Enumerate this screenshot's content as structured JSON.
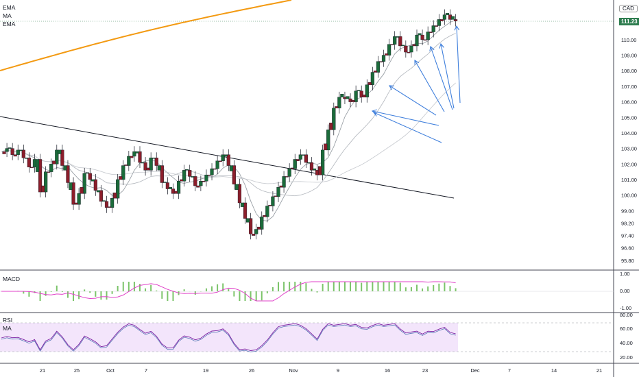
{
  "indicators": {
    "ema1": "EMA",
    "ma": "MA",
    "ema2": "EMA"
  },
  "currency": "CAD",
  "last_price": "111.23",
  "colors": {
    "up": "#1b6b3a",
    "down": "#8b1e2b",
    "ema_long": "#f39a12",
    "arrow": "#3f7fdc",
    "macd_line": "#e040c8",
    "macd_hist": "#7cc46a",
    "rsi_line": "#7b1fa2",
    "rsi_band": "#f3e5fb",
    "badge": "#2e7d4f"
  },
  "panes": {
    "macd_label": "MACD",
    "rsi_label": "RSI",
    "rsi_ma_label": "MA"
  },
  "chart_data": {
    "type": "candlestick",
    "y_ticks": [
      "111.23",
      "110.00",
      "109.00",
      "108.00",
      "107.00",
      "106.00",
      "105.00",
      "104.00",
      "103.00",
      "102.00",
      "101.00",
      "100.00",
      "99.00",
      "98.20",
      "97.40",
      "96.60",
      "95.80"
    ],
    "ylim": [
      95.8,
      111.6
    ],
    "x_ticks": [
      "21",
      "25",
      "Oct",
      "7",
      "19",
      "26",
      "Nov",
      "9",
      "16",
      "23",
      "Dec",
      "7",
      "14",
      "21"
    ],
    "macd_ticks": [
      "1.00",
      "0.00",
      "-1.00"
    ],
    "rsi_ticks": [
      "80.00",
      "60.00",
      "40.00",
      "20.00"
    ],
    "series": [
      {
        "name": "Price"
      }
    ],
    "price_path": [
      [
        0,
        102.8
      ],
      [
        4,
        103.0
      ],
      [
        8,
        102.6
      ],
      [
        12,
        102.9
      ],
      [
        16,
        102.4
      ],
      [
        20,
        101.8
      ],
      [
        24,
        102.3
      ],
      [
        28,
        100.2
      ],
      [
        32,
        101.5
      ],
      [
        36,
        102.0
      ],
      [
        40,
        102.9
      ],
      [
        44,
        101.9
      ],
      [
        48,
        100.8
      ],
      [
        52,
        99.4
      ],
      [
        56,
        100.1
      ],
      [
        60,
        101.4
      ],
      [
        64,
        101.0
      ],
      [
        68,
        100.3
      ],
      [
        72,
        99.6
      ],
      [
        76,
        99.2
      ],
      [
        80,
        99.8
      ],
      [
        84,
        101.0
      ],
      [
        88,
        101.9
      ],
      [
        92,
        102.5
      ],
      [
        96,
        102.8
      ],
      [
        100,
        102.1
      ],
      [
        104,
        101.6
      ],
      [
        108,
        102.4
      ],
      [
        112,
        101.9
      ],
      [
        116,
        100.8
      ],
      [
        120,
        100.4
      ],
      [
        124,
        100.1
      ],
      [
        128,
        100.9
      ],
      [
        132,
        101.6
      ],
      [
        136,
        101.2
      ],
      [
        140,
        100.6
      ],
      [
        144,
        100.9
      ],
      [
        148,
        101.3
      ],
      [
        152,
        101.7
      ],
      [
        156,
        102.2
      ],
      [
        160,
        102.6
      ],
      [
        164,
        101.9
      ],
      [
        168,
        100.7
      ],
      [
        172,
        99.5
      ],
      [
        176,
        98.5
      ],
      [
        180,
        97.5
      ],
      [
        184,
        97.8
      ],
      [
        188,
        98.6
      ],
      [
        192,
        99.3
      ],
      [
        196,
        99.9
      ],
      [
        200,
        100.5
      ],
      [
        204,
        101.2
      ],
      [
        208,
        101.7
      ],
      [
        212,
        102.3
      ],
      [
        216,
        102.6
      ],
      [
        220,
        102.1
      ],
      [
        224,
        101.6
      ],
      [
        228,
        101.3
      ],
      [
        232,
        102.9
      ],
      [
        236,
        104.2
      ],
      [
        240,
        105.6
      ],
      [
        244,
        106.3
      ],
      [
        248,
        106.2
      ],
      [
        252,
        106.0
      ],
      [
        256,
        106.7
      ],
      [
        260,
        106.3
      ],
      [
        264,
        107.1
      ],
      [
        268,
        107.9
      ],
      [
        272,
        108.6
      ],
      [
        276,
        109.0
      ],
      [
        280,
        109.7
      ],
      [
        284,
        110.2
      ],
      [
        288,
        109.6
      ],
      [
        292,
        109.2
      ],
      [
        296,
        109.6
      ],
      [
        300,
        110.3
      ],
      [
        304,
        110.0
      ],
      [
        308,
        110.5
      ],
      [
        312,
        110.9
      ],
      [
        316,
        111.3
      ],
      [
        320,
        111.6
      ],
      [
        324,
        111.3
      ],
      [
        328,
        111.2
      ]
    ]
  }
}
